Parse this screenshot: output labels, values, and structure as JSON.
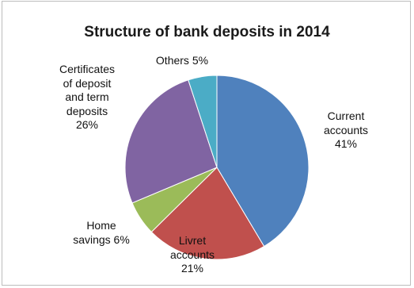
{
  "chart_data": {
    "type": "pie",
    "title": "Structure of bank deposits in 2014",
    "slices": [
      {
        "name": "Current accounts",
        "value": 41,
        "color": "#4f81bd",
        "label": "Current\naccounts\n41%"
      },
      {
        "name": "Livret accounts",
        "value": 21,
        "color": "#c0504d",
        "label": "Livret\naccounts\n21%"
      },
      {
        "name": "Home savings",
        "value": 6,
        "color": "#9bbb59",
        "label": "Home\nsavings 6%"
      },
      {
        "name": "Certificates of deposit and term deposits",
        "value": 26,
        "color": "#8064a2",
        "label": "Certificates\nof deposit\nand term\ndeposits\n26%"
      },
      {
        "name": "Others",
        "value": 5,
        "color": "#4bacc6",
        "label": "Others 5%"
      }
    ],
    "legend": "none"
  }
}
